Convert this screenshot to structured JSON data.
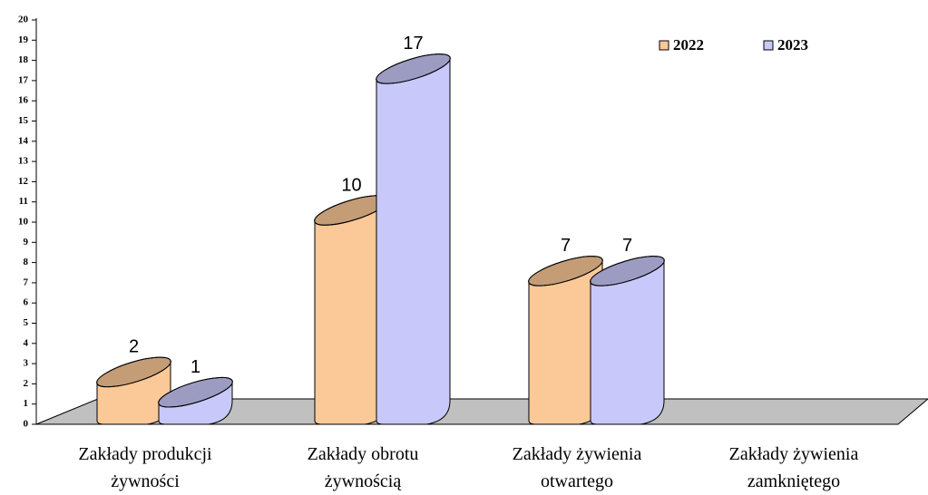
{
  "chart_data": {
    "type": "bar3d",
    "categories": [
      "Zakłady produkcji żywności",
      "Zakłady obrotu żywnością",
      "Zakłady żywienia otwartego",
      "Zakłady żywienia zamkniętego"
    ],
    "series": [
      {
        "name": "2022",
        "color": "#fbc898",
        "values": [
          2,
          10,
          7,
          null
        ]
      },
      {
        "name": "2023",
        "color": "#c8c8fa",
        "values": [
          1,
          17,
          7,
          null
        ]
      }
    ],
    "ylim": [
      0,
      20
    ],
    "yticks": [
      0,
      1,
      2,
      3,
      4,
      5,
      6,
      7,
      8,
      9,
      10,
      11,
      12,
      13,
      14,
      15,
      16,
      17,
      18,
      19,
      20
    ],
    "legend": "top-right"
  }
}
